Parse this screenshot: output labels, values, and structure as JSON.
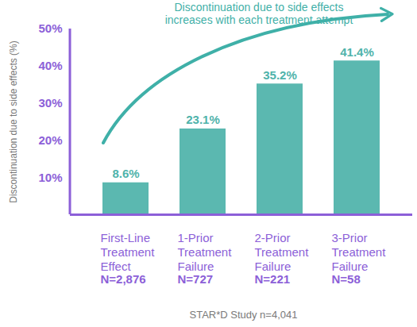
{
  "chart_data": {
    "type": "bar",
    "annotation": "Discontinuation due to side effects\nincreases with each treatment attempt",
    "ylabel": "Discontinuation due to side effects (%)",
    "caption": "STAR*D Study n=4,041",
    "categories": [
      "First-Line\nTreatment\nEffect",
      "1-Prior\nTreatment\nFailure",
      "2-Prior\nTreatment\nFailure",
      "3-Prior\nTreatment\nFailure"
    ],
    "n_labels": [
      "N=2,876",
      "N=727",
      "N=221",
      "N=58"
    ],
    "values": [
      8.6,
      23.1,
      35.2,
      41.4
    ],
    "value_labels": [
      "8.6%",
      "23.1%",
      "35.2%",
      "41.4%"
    ],
    "color": "#5bb8b0",
    "ylim": [
      0,
      50
    ],
    "yticks": [
      {
        "value": 10,
        "label": "10%"
      },
      {
        "value": 20,
        "label": "20%"
      },
      {
        "value": 30,
        "label": "30%"
      },
      {
        "value": 40,
        "label": "40%"
      },
      {
        "value": 50,
        "label": "50%"
      }
    ],
    "grid": false,
    "data_labels": true
  }
}
